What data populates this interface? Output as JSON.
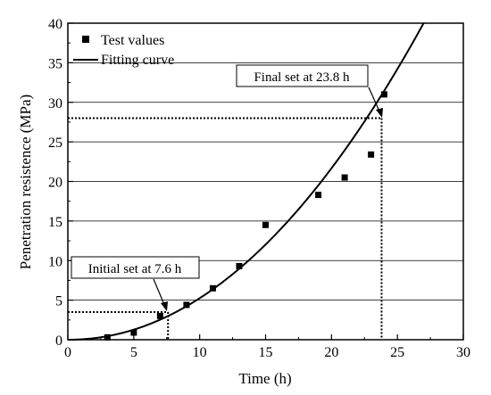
{
  "chart_data": {
    "type": "scatter",
    "title": "",
    "xlabel": "Time (h)",
    "ylabel": "Penetration resistence (MPa)",
    "xlim": [
      0,
      30
    ],
    "ylim": [
      0,
      40
    ],
    "xticks": [
      0,
      5,
      10,
      15,
      20,
      25,
      30
    ],
    "yticks": [
      0,
      5,
      10,
      15,
      20,
      25,
      30,
      35,
      40
    ],
    "grid": "horizontal",
    "legend_position": "top-left",
    "series": [
      {
        "name": "Test values",
        "kind": "points",
        "color": "#000000",
        "x": [
          3,
          5,
          7,
          9,
          11,
          13,
          15,
          19,
          21,
          23,
          24
        ],
        "y": [
          0.3,
          0.9,
          3.0,
          4.4,
          6.5,
          9.3,
          14.5,
          18.3,
          20.5,
          23.4,
          31.0
        ]
      },
      {
        "name": "Fitting curve",
        "kind": "curve",
        "color": "#000000",
        "model": "y = 0.0472 * x^2.046"
      }
    ],
    "annotations": [
      {
        "text": "Initial set at 7.6 h",
        "x": 7.6,
        "y": 3.5
      },
      {
        "text": "Final set at 23.8 h",
        "x": 23.8,
        "y": 28
      }
    ]
  }
}
